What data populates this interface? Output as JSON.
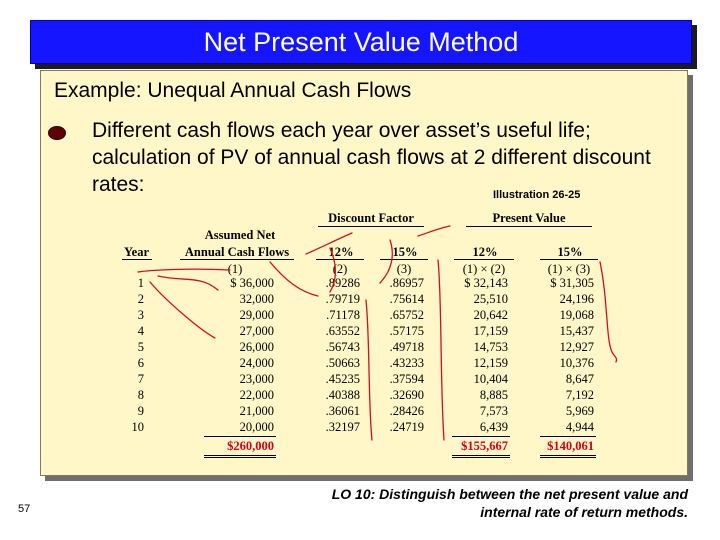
{
  "title": "Net Present Value Method",
  "panel": {
    "heading": "Example: Unequal Annual Cash Flows",
    "bullet_text": "Different cash flows each year over asset’s useful life; calculation of PV of annual cash flows at 2 different discount rates:",
    "illustration": "Illustration 26-25"
  },
  "table": {
    "group_discount": "Discount Factor",
    "group_present": "Present Value",
    "col_year": "Year",
    "col_net_line1": "Assumed Net",
    "col_net_line2": "Annual Cash Flows",
    "col_df12": "12%",
    "col_df15": "15%",
    "col_pv12": "12%",
    "col_pv15": "15%",
    "sub_net": "(1)",
    "sub_df12": "(2)",
    "sub_df15": "(3)",
    "sub_pv12": "(1) × (2)",
    "sub_pv15": "(1) × (3)",
    "rows": [
      {
        "year": "1",
        "flow": "$  36,000",
        "df12": ".89286",
        "df15": ".86957",
        "pv12": "$  32,143",
        "pv15": "$  31,305"
      },
      {
        "year": "2",
        "flow": "32,000",
        "df12": ".79719",
        "df15": ".75614",
        "pv12": "25,510",
        "pv15": "24,196"
      },
      {
        "year": "3",
        "flow": "29,000",
        "df12": ".71178",
        "df15": ".65752",
        "pv12": "20,642",
        "pv15": "19,068"
      },
      {
        "year": "4",
        "flow": "27,000",
        "df12": ".63552",
        "df15": ".57175",
        "pv12": "17,159",
        "pv15": "15,437"
      },
      {
        "year": "5",
        "flow": "26,000",
        "df12": ".56743",
        "df15": ".49718",
        "pv12": "14,753",
        "pv15": "12,927"
      },
      {
        "year": "6",
        "flow": "24,000",
        "df12": ".50663",
        "df15": ".43233",
        "pv12": "12,159",
        "pv15": "10,376"
      },
      {
        "year": "7",
        "flow": "23,000",
        "df12": ".45235",
        "df15": ".37594",
        "pv12": "10,404",
        "pv15": "8,647"
      },
      {
        "year": "8",
        "flow": "22,000",
        "df12": ".40388",
        "df15": ".32690",
        "pv12": "8,885",
        "pv15": "7,192"
      },
      {
        "year": "9",
        "flow": "21,000",
        "df12": ".36061",
        "df15": ".28426",
        "pv12": "7,573",
        "pv15": "5,969"
      },
      {
        "year": "10",
        "flow": "20,000",
        "df12": ".32197",
        "df15": ".24719",
        "pv12": "6,439",
        "pv15": "4,944"
      }
    ],
    "total_flow": "$260,000",
    "total_pv12": "$155,667",
    "total_pv15": "$140,061"
  },
  "footer": {
    "page_number": "57",
    "lo_line1": "LO 10:  Distinguish between the net present value and",
    "lo_line2": "internal rate of return methods."
  },
  "colors": {
    "title_bar": "#1515ff",
    "panel_bg": "#fff7c8",
    "totals": "#d0001a",
    "bullet": "#5e0000"
  }
}
